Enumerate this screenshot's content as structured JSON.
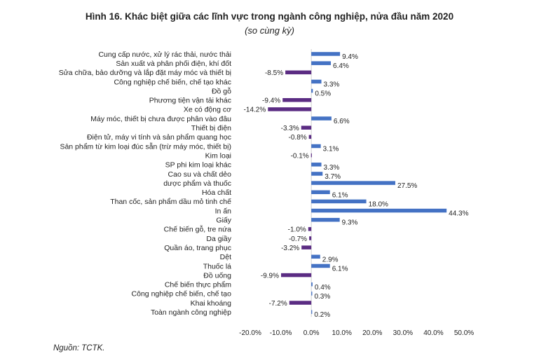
{
  "chart_data": {
    "type": "bar",
    "orientation": "horizontal",
    "title": "Hình 16. Khác biệt giữa các lĩnh vực trong ngành công nghiệp, nửa đầu năm 2020",
    "subtitle": "(so cùng kỳ)",
    "categories": [
      "Cung cấp nước, xử lý rác thải, nước thải",
      "Sản xuất và phân phối điện, khí đốt",
      "Sửa chữa, bảo dưỡng và lắp đặt máy móc và thiết bị",
      "Công nghiệp chế biến, chế tạo khác",
      "Đồ gỗ",
      "Phương tiện vận tải khác",
      "Xe có động cơ",
      "Máy móc, thiết bị chưa được phân vào đâu",
      "Thiết bị điện",
      "Điện tử, máy vi tính và sản phẩm quang học",
      "Sản phẩm từ kim loại đúc sẵn (trừ máy móc, thiết bị)",
      "Kim loại",
      "SP phi kim loại khác",
      "Cao su và chất dẻo",
      "dược phẩm và thuốc",
      "Hóa chất",
      "Than cốc, sản phẩm dầu mỏ tinh chế",
      "In ấn",
      "Giấy",
      "Chế biến gỗ, tre nứa",
      "Da giầy",
      "Quần áo, trang phục",
      "Dệt",
      "Thuốc lá",
      "Đồ uống",
      "Chế biến thực phẩm",
      "Công nghiệp chế biến, chế tạo",
      "Khai khoáng",
      "Toàn ngành công nghiệp"
    ],
    "values": [
      9.4,
      6.4,
      -8.5,
      3.3,
      0.5,
      -9.4,
      -14.2,
      6.6,
      -3.3,
      -0.8,
      3.1,
      -0.1,
      3.3,
      3.7,
      27.5,
      6.1,
      18.0,
      44.3,
      9.3,
      -1.0,
      -0.7,
      -3.2,
      2.9,
      6.1,
      -9.9,
      0.4,
      0.3,
      -7.2,
      0.2
    ],
    "value_labels": [
      "9.4%",
      "6.4%",
      "-8.5%",
      "3.3%",
      "0.5%",
      "-9.4%",
      "-14.2%",
      "6.6%",
      "-3.3%",
      "-0.8%",
      "3.1%",
      "-0.1%",
      "3.3%",
      "3.7%",
      "27.5%",
      "6.1%",
      "18.0%",
      "44.3%",
      "9.3%",
      "-1.0%",
      "-0.7%",
      "-3.2%",
      "2.9%",
      "6.1%",
      "-9.9%",
      "0.4%",
      "0.3%",
      "-7.2%",
      "0.2%"
    ],
    "xlim": [
      -20,
      50
    ],
    "xticks": [
      -20,
      -10,
      0,
      10,
      20,
      30,
      40,
      50
    ],
    "xtick_labels": [
      "-20.0%",
      "-10.0%",
      "0.0%",
      "10.0%",
      "20.0%",
      "30.0%",
      "40.0%",
      "50.0%"
    ],
    "colors": {
      "positive": "#4472c4",
      "negative": "#5b2c83"
    },
    "grid": false,
    "legend": "none"
  },
  "source": "Nguồn: TCTK."
}
